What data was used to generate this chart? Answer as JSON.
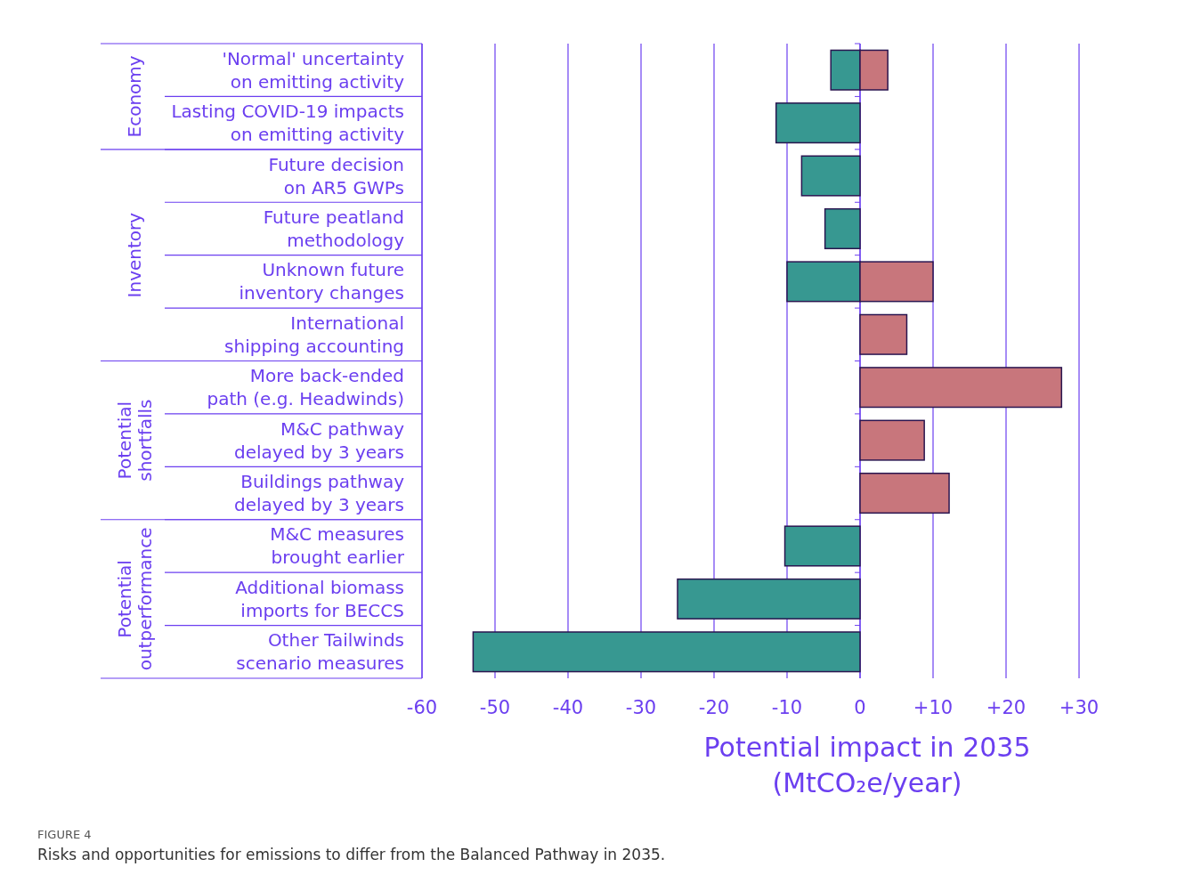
{
  "chart_data": {
    "type": "bar",
    "orientation": "horizontal",
    "categories": [
      "'Normal' uncertainty\non emitting activity",
      "Lasting COVID-19 impacts\non emitting activity",
      "Future decision\non AR5 GWPs",
      "Future peatland\nmethodology",
      "Unknown future\ninventory changes",
      "International\nshipping accounting",
      "More back-ended\npath (e.g. Headwinds)",
      "M&C pathway\ndelayed by 3 years",
      "Buildings pathway\ndelayed by 3 years",
      "M&C measures\nbrought earlier",
      "Additional biomass\nimports for BECCS",
      "Other Tailwinds\nscenario measures"
    ],
    "series": [
      {
        "color": "#379891",
        "values": [
          -4,
          -11.5,
          -8,
          -4.8,
          -10,
          null,
          null,
          null,
          null,
          -10.3,
          -25,
          -53
        ]
      },
      {
        "color": "#c8767c",
        "values": [
          3.8,
          null,
          null,
          null,
          10,
          6.4,
          27.6,
          8.8,
          12.2,
          null,
          null,
          null
        ]
      }
    ],
    "xlim": [
      -60,
      30
    ],
    "xticks": [
      -60,
      -50,
      -40,
      -30,
      -20,
      -10,
      0,
      {
        "value": 10,
        "label": "+10"
      },
      {
        "value": 20,
        "label": "+20"
      },
      {
        "value": 30,
        "label": "+30"
      }
    ],
    "grid": "x",
    "xlabel": "Potential impact in 2035\n(MtCO₂e/year)",
    "annotations": [
      "Economy",
      "Inventory",
      "Potential\nshortfalls",
      "Potential\noutperformance",
      "FIGURE 4",
      "Risks and opportunities for emissions to differ from the Balanced Pathway in 2035."
    ]
  }
}
